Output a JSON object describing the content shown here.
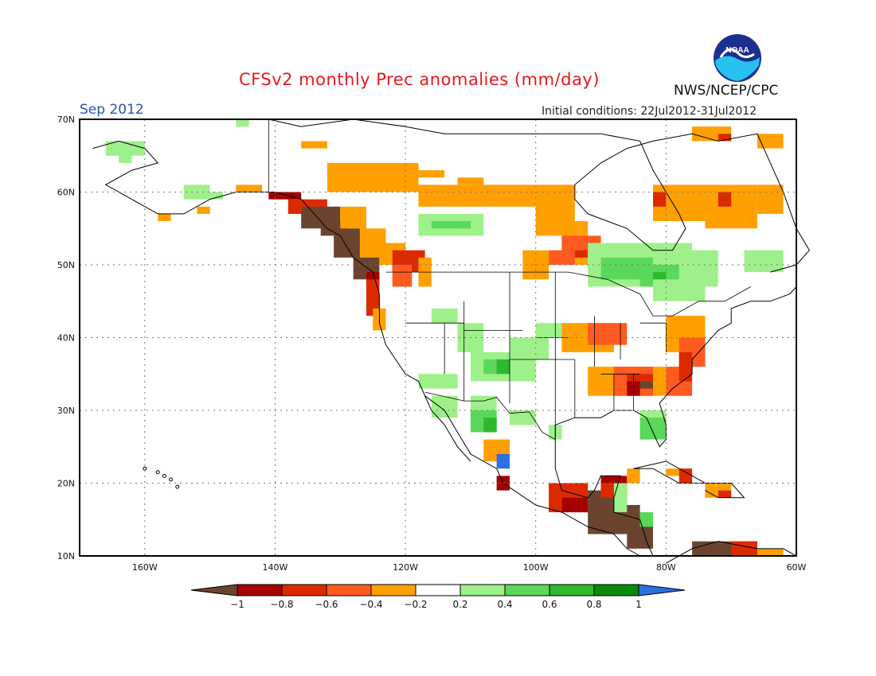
{
  "header": {
    "title": "CFSv2 monthly Prec anomalies (mm/day)",
    "period": "Sep 2012",
    "initial_conditions": "Initial conditions: 22Jul2012-31Jul2012",
    "agency": "NWS/NCEP/CPC",
    "logo_text": "NOAA"
  },
  "map": {
    "lat_labels": [
      "70N",
      "60N",
      "50N",
      "40N",
      "30N",
      "20N",
      "10N"
    ],
    "lon_labels": [
      "160W",
      "140W",
      "120W",
      "100W",
      "80W",
      "60W"
    ],
    "lat_values": [
      70,
      60,
      50,
      40,
      30,
      20,
      10
    ],
    "lon_values": [
      -160,
      -140,
      -120,
      -100,
      -80,
      -60
    ]
  },
  "colorbar": {
    "labels": [
      "−1",
      "−0.8",
      "−0.6",
      "−0.4",
      "−0.2",
      "0.2",
      "0.4",
      "0.6",
      "0.8",
      "1"
    ],
    "colors": [
      "#6b4430",
      "#a50000",
      "#dc2a00",
      "#ff5a20",
      "#ffa000",
      "#ffffff",
      "#9ef08a",
      "#5ad85a",
      "#2eb82e",
      "#0a8a0a",
      "#2b6fe0"
    ]
  },
  "colors": {
    "title": "#e8181c",
    "period": "#2a52be",
    "grid": "#777777"
  }
}
